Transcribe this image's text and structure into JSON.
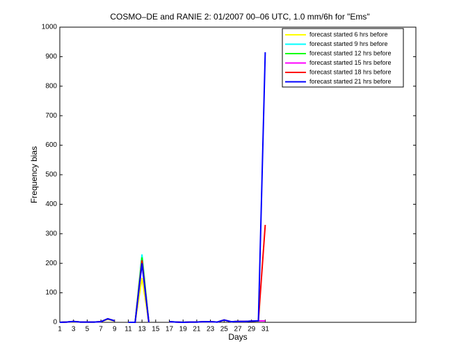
{
  "chart_data": {
    "type": "line",
    "title": "COSMO–DE and RANIE 2: 01/2007 00–06 UTC, 1.0 mm/6h for \"Ems\"",
    "x_label": "Days",
    "y_label": "Frequency bias",
    "x": [
      1,
      2,
      3,
      4,
      5,
      6,
      7,
      8,
      9,
      10,
      11,
      12,
      13,
      14,
      15,
      16,
      17,
      18,
      19,
      20,
      21,
      22,
      23,
      24,
      25,
      26,
      27,
      28,
      29,
      30,
      31
    ],
    "xlim": [
      1,
      53
    ],
    "xticks": [
      1,
      3,
      5,
      7,
      9,
      11,
      13,
      15,
      17,
      19,
      21,
      23,
      25,
      27,
      29,
      31
    ],
    "ylim": [
      0,
      1000
    ],
    "yticks": [
      0,
      100,
      200,
      300,
      400,
      500,
      600,
      700,
      800,
      900,
      1000
    ],
    "legend": "upper right",
    "series": [
      {
        "name": "forecast started 6 hrs before",
        "color": "#ffff00",
        "values": [
          0,
          1,
          2,
          1,
          1,
          1,
          2,
          10,
          4,
          null,
          0,
          0,
          150,
          0,
          null,
          null,
          2,
          1,
          0,
          1,
          1,
          2,
          2,
          1,
          7,
          2,
          3,
          3,
          4,
          4,
          null
        ]
      },
      {
        "name": "forecast started 9 hrs before",
        "color": "#00ffff",
        "values": [
          0,
          1,
          3,
          1,
          1,
          1,
          2,
          12,
          5,
          null,
          0,
          0,
          230,
          0,
          null,
          null,
          3,
          1,
          0,
          1,
          1,
          2,
          2,
          1,
          8,
          2,
          3,
          3,
          4,
          5,
          null
        ]
      },
      {
        "name": "forecast started 12 hrs before",
        "color": "#00ff00",
        "values": [
          0,
          1,
          3,
          1,
          1,
          1,
          2,
          12,
          5,
          null,
          0,
          0,
          220,
          0,
          null,
          null,
          2,
          1,
          0,
          1,
          1,
          2,
          2,
          1,
          8,
          2,
          3,
          3,
          4,
          5,
          null
        ]
      },
      {
        "name": "forecast started 15 hrs before",
        "color": "#ff00ff",
        "values": [
          0,
          1,
          3,
          1,
          1,
          1,
          2,
          12,
          5,
          null,
          0,
          0,
          200,
          0,
          null,
          null,
          2,
          1,
          0,
          1,
          1,
          2,
          2,
          1,
          8,
          2,
          3,
          3,
          4,
          5,
          5
        ]
      },
      {
        "name": "forecast started 18 hrs before",
        "color": "#ff0000",
        "values": [
          0,
          1,
          3,
          1,
          1,
          1,
          2,
          12,
          5,
          null,
          0,
          0,
          210,
          0,
          null,
          null,
          2,
          1,
          0,
          1,
          1,
          2,
          2,
          1,
          8,
          2,
          3,
          3,
          4,
          5,
          330
        ]
      },
      {
        "name": "forecast started 21 hrs before",
        "color": "#0000ff",
        "values": [
          0,
          1,
          3,
          1,
          1,
          1,
          2,
          12,
          5,
          null,
          0,
          0,
          200,
          0,
          null,
          null,
          2,
          1,
          0,
          1,
          1,
          2,
          2,
          1,
          8,
          2,
          3,
          3,
          4,
          5,
          915
        ]
      }
    ]
  }
}
